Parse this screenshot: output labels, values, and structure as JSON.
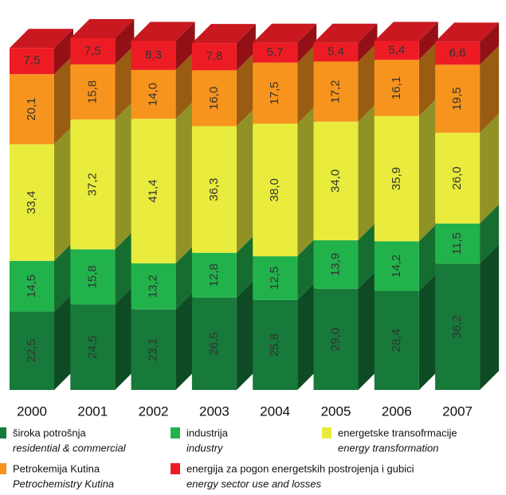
{
  "chart_data": {
    "type": "stacked_bar_3d",
    "categories": [
      "2000",
      "2001",
      "2002",
      "2003",
      "2004",
      "2005",
      "2006",
      "2007"
    ],
    "series": [
      {
        "name": "široka potrošnja",
        "name_en": "residential & commercial",
        "color": "#17793a",
        "values": [
          22.5,
          24.5,
          23.1,
          26.5,
          25.8,
          29.0,
          28.4,
          36.2
        ],
        "value_labels": [
          "22,5",
          "24,5",
          "23,1",
          "26,5",
          "25,8",
          "29,0",
          "28,4",
          "36,2"
        ]
      },
      {
        "name": "industrija",
        "name_en": "industry",
        "color": "#22b24c",
        "values": [
          14.5,
          15.8,
          13.2,
          12.8,
          12.5,
          13.9,
          14.2,
          11.5
        ],
        "value_labels": [
          "14,5",
          "15,8",
          "13,2",
          "12,8",
          "12,5",
          "13,9",
          "14,2",
          "11,5"
        ]
      },
      {
        "name": "energetske transofrmacije",
        "name_en": "energy transformation",
        "color": "#e9ec3c",
        "values": [
          33.4,
          37.2,
          41.4,
          36.3,
          38.0,
          34.0,
          35.9,
          26.0
        ],
        "value_labels": [
          "33,4",
          "37,2",
          "41,4",
          "36,3",
          "38,0",
          "34,0",
          "35,9",
          "26,0"
        ]
      },
      {
        "name": "Petrokemija Kutina",
        "name_en": "Petrochemistry Kutina",
        "color": "#f7941d",
        "values": [
          20.1,
          15.8,
          14.0,
          16.0,
          17.5,
          17.2,
          16.1,
          19.5
        ],
        "value_labels": [
          "20,1",
          "15,8",
          "14,0",
          "16,0",
          "17,5",
          "17,2",
          "16,1",
          "19,5"
        ]
      },
      {
        "name": "energija za pogon energetskih postrojenja i gubici",
        "name_en": "energy sector use and losses",
        "color": "#ed1c24",
        "values": [
          7.5,
          7.5,
          8.3,
          7.8,
          5.7,
          5.4,
          5.4,
          6.6
        ],
        "value_labels": [
          "7,5",
          "7,5",
          "8,3",
          "7,8",
          "5,7",
          "5,4",
          "5,4",
          "6,6"
        ]
      }
    ]
  }
}
